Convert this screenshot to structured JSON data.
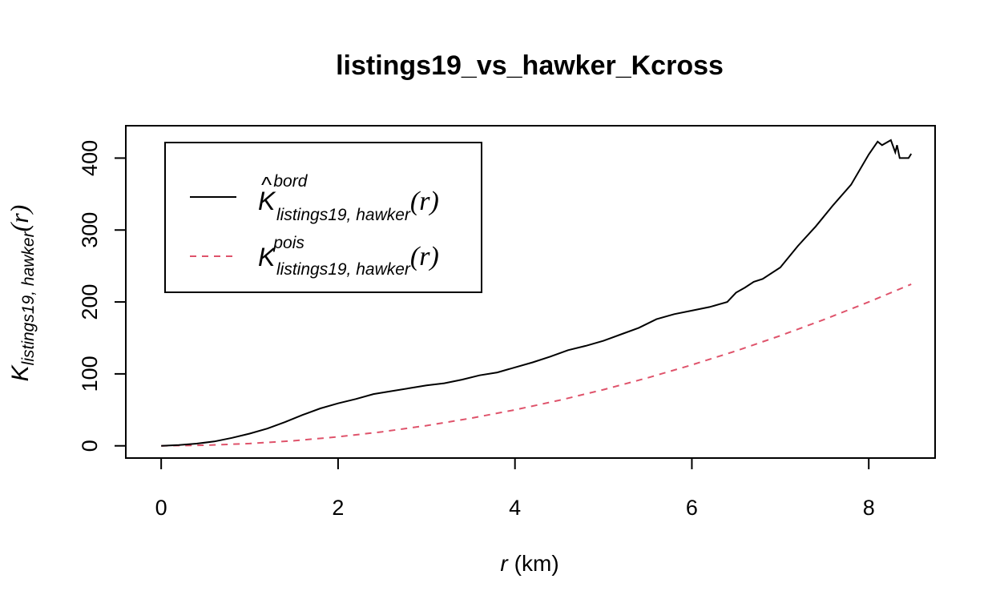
{
  "chart_data": {
    "type": "line",
    "title": "listings19_vs_hawker_Kcross",
    "xlabel": {
      "var": "r",
      "unit": "(km)"
    },
    "ylabel": {
      "main": "K",
      "sub": "listings19, hawker",
      "arg": "(r)"
    },
    "xlim": [
      -0.4,
      8.75
    ],
    "ylim": [
      -17,
      445
    ],
    "xticks": [
      0,
      2,
      4,
      6,
      8
    ],
    "yticks": [
      0,
      100,
      200,
      300,
      400
    ],
    "grid": false,
    "legend_position": "top-left",
    "series": [
      {
        "key": "bord",
        "legend": {
          "main": "K",
          "hat": true,
          "sup": "bord",
          "sub": "listings19, hawker",
          "arg": "(r)"
        },
        "color": "#000000",
        "dash": "solid",
        "x": [
          0,
          0.2,
          0.4,
          0.6,
          0.8,
          1.0,
          1.2,
          1.4,
          1.6,
          1.8,
          2.0,
          2.2,
          2.4,
          2.6,
          2.8,
          3.0,
          3.2,
          3.4,
          3.6,
          3.8,
          4.0,
          4.2,
          4.4,
          4.6,
          4.8,
          5.0,
          5.2,
          5.4,
          5.6,
          5.8,
          6.0,
          6.2,
          6.4,
          6.5,
          6.6,
          6.7,
          6.8,
          7.0,
          7.2,
          7.4,
          7.6,
          7.8,
          8.0,
          8.1,
          8.15,
          8.25,
          8.3,
          8.32,
          8.35,
          8.45,
          8.48
        ],
        "y": [
          0,
          1,
          3,
          6,
          11,
          17,
          24,
          33,
          43,
          52,
          59,
          65,
          72,
          76,
          80,
          84,
          87,
          92,
          98,
          102,
          109,
          116,
          124,
          133,
          139,
          146,
          155,
          164,
          176,
          183,
          188,
          193,
          200,
          213,
          220,
          228,
          232,
          248,
          278,
          305,
          335,
          363,
          405,
          423,
          418,
          425,
          408,
          418,
          400,
          400,
          406
        ]
      },
      {
        "key": "pois",
        "legend": {
          "main": "K",
          "hat": false,
          "sup": "pois",
          "sub": "listings19, hawker",
          "arg": "(r)"
        },
        "color": "#DF536B",
        "dash": "dashed",
        "x": [
          0,
          0.5,
          1.0,
          1.5,
          2.0,
          2.5,
          3.0,
          3.5,
          4.0,
          4.5,
          5.0,
          5.5,
          6.0,
          6.5,
          7.0,
          7.5,
          8.0,
          8.48
        ],
        "y": [
          0,
          0.8,
          3.1,
          7.0,
          12.5,
          19.5,
          28.1,
          38.3,
          50.0,
          63.3,
          78.1,
          94.5,
          112.5,
          132.0,
          153.1,
          175.8,
          200.0,
          224.7
        ]
      }
    ]
  }
}
